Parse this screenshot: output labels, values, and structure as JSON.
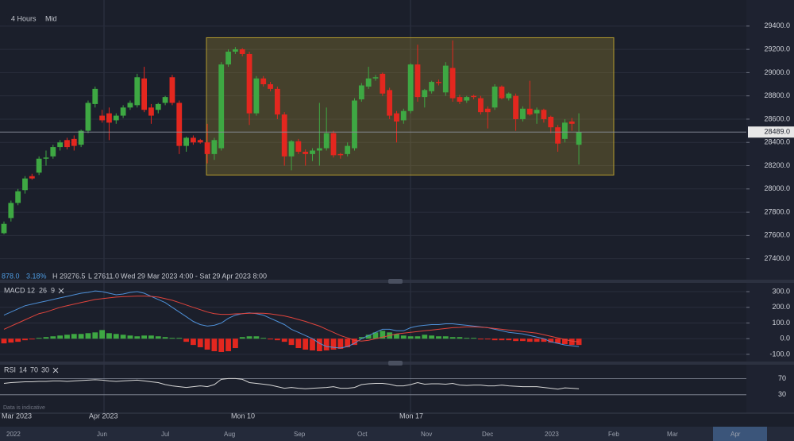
{
  "toolbar": {
    "interval": "4 Hours",
    "price_type": "Mid"
  },
  "info": {
    "change": "878.0",
    "change_pct": "3.18%",
    "high": "H 29276.5",
    "low": "L 27611.0",
    "range": "Wed 29 Mar 2023 4:00 - Sat 29 Apr 2023 8:00"
  },
  "time_axis": [
    "Mar 2023",
    "Apr 2023",
    "Mon 10",
    "Mon 17"
  ],
  "navigator": [
    "2022",
    "Jun",
    "Jul",
    "Aug",
    "Sep",
    "Oct",
    "Nov",
    "Dec",
    "2023",
    "Feb",
    "Mar",
    "Apr"
  ],
  "disclaimer": "Data is indicative",
  "chart_data": [
    {
      "type": "candlestick",
      "up_color": "#3ea843",
      "down_color": "#e3271f",
      "ylim": [
        27220,
        29590
      ],
      "yticks": [
        {
          "value": 29400,
          "label": "29400.0"
        },
        {
          "value": 29200,
          "label": "29200.0"
        },
        {
          "value": 29000,
          "label": "29000.0"
        },
        {
          "value": 28800,
          "label": "28800.0"
        },
        {
          "value": 28600,
          "label": "28600.0"
        },
        {
          "value": 28400,
          "label": "28400.0"
        },
        {
          "value": 28200,
          "label": "28200.0"
        },
        {
          "value": 28000,
          "label": "28000.0"
        },
        {
          "value": 27800,
          "label": "27800.0"
        },
        {
          "value": 27600,
          "label": "27600.0"
        },
        {
          "value": 27400,
          "label": "27400.0"
        }
      ],
      "last_price": {
        "value": 28489,
        "label": "28489.0"
      },
      "range_box": {
        "ylim": [
          28120,
          29300
        ],
        "color": "#b39b2e"
      },
      "open": [
        27620,
        27750,
        27880,
        27990,
        28110,
        28140,
        28260,
        28280,
        28360,
        28420,
        28430,
        28380,
        28500,
        28730,
        28630,
        28650,
        28590,
        28630,
        28700,
        28720,
        28950,
        28700,
        28680,
        28740,
        28960,
        28740,
        28370,
        28440,
        28420,
        28400,
        28300,
        28350,
        29070,
        29180,
        29200,
        29160,
        28650,
        28950,
        28900,
        28860,
        28640,
        28280,
        28410,
        28320,
        28300,
        28330,
        28350,
        28480,
        28300,
        28300,
        28350,
        28770,
        28880,
        28950,
        28990,
        28850,
        28650,
        28590,
        28670,
        29070,
        28790,
        28840,
        28920,
        28830,
        29040,
        28790,
        28760,
        28800,
        28780,
        28690,
        28700,
        28880,
        28780,
        28800,
        28600,
        28690,
        28650,
        28680,
        28620,
        28530,
        28430,
        28580,
        28380
      ],
      "high": [
        27720,
        27900,
        28000,
        28110,
        28130,
        28280,
        28330,
        28380,
        28420,
        28440,
        28460,
        28510,
        28760,
        28880,
        28680,
        28700,
        28650,
        28720,
        28760,
        28990,
        29050,
        28730,
        28740,
        28800,
        28980,
        28760,
        28450,
        28460,
        28430,
        28560,
        28440,
        29090,
        29200,
        29220,
        29210,
        29180,
        28970,
        28970,
        28920,
        28880,
        28660,
        28420,
        28430,
        28340,
        28350,
        28740,
        28700,
        28500,
        28310,
        28400,
        28780,
        28910,
        29050,
        28980,
        29000,
        28870,
        28670,
        28690,
        29080,
        29240,
        28860,
        28930,
        28940,
        29090,
        29276.5,
        28810,
        28800,
        28810,
        28800,
        28710,
        28900,
        28890,
        28830,
        28820,
        28710,
        28930,
        28700,
        28690,
        28630,
        28550,
        28600,
        28610,
        28650
      ],
      "low": [
        27611,
        27720,
        27860,
        27960,
        28080,
        28120,
        28200,
        28260,
        28330,
        28340,
        28330,
        28360,
        28480,
        28700,
        28570,
        28420,
        28560,
        28610,
        28680,
        28700,
        28660,
        28560,
        28650,
        28720,
        28720,
        28300,
        28320,
        28380,
        28390,
        28220,
        28250,
        28330,
        29050,
        29160,
        29140,
        28550,
        28630,
        28880,
        28840,
        28600,
        28200,
        28160,
        28300,
        28200,
        28240,
        28200,
        28330,
        28270,
        28260,
        28280,
        28330,
        28750,
        28860,
        28930,
        28800,
        28600,
        28400,
        28560,
        28650,
        28750,
        28700,
        28820,
        28890,
        28800,
        28750,
        28730,
        28740,
        28770,
        28640,
        28520,
        28680,
        28770,
        28760,
        28500,
        28580,
        28630,
        28560,
        28570,
        28480,
        28320,
        28400,
        28500,
        28210
      ],
      "close": [
        27700,
        27880,
        27980,
        28090,
        28090,
        28260,
        28270,
        28360,
        28400,
        28360,
        28370,
        28500,
        28740,
        28860,
        28590,
        28570,
        28630,
        28700,
        28740,
        28960,
        28680,
        28630,
        28730,
        28790,
        28740,
        28370,
        28440,
        28400,
        28400,
        28300,
        28420,
        29070,
        29180,
        29200,
        29160,
        28650,
        28950,
        28900,
        28860,
        28640,
        28280,
        28410,
        28320,
        28300,
        28330,
        28350,
        28480,
        28290,
        28290,
        28370,
        28760,
        28890,
        28950,
        28960,
        28820,
        28630,
        28580,
        28670,
        29070,
        28790,
        28850,
        28920,
        28910,
        29060,
        28780,
        28750,
        28790,
        28790,
        28660,
        28660,
        28880,
        28780,
        28820,
        28600,
        28690,
        28640,
        28680,
        28600,
        28530,
        28390,
        28570,
        28560,
        28489
      ]
    },
    {
      "type": "macd",
      "label": "MACD",
      "params": [
        12,
        26,
        9
      ],
      "ylim": [
        -146,
        356
      ],
      "yticks": [
        {
          "value": 300,
          "label": "300.0"
        },
        {
          "value": 200,
          "label": "200.0"
        },
        {
          "value": 100,
          "label": "100.0"
        },
        {
          "value": 0,
          "label": "0.0"
        },
        {
          "value": -100,
          "label": "-100.0"
        }
      ],
      "histogram": {
        "up_color": "#3ea843",
        "down_color": "#e3271f",
        "values": [
          -30,
          -25,
          -20,
          -10,
          -5,
          5,
          10,
          15,
          20,
          25,
          30,
          30,
          35,
          40,
          55,
          35,
          30,
          25,
          20,
          15,
          20,
          20,
          15,
          10,
          5,
          5,
          -20,
          -40,
          -55,
          -70,
          -80,
          -85,
          -80,
          -60,
          10,
          15,
          15,
          5,
          -5,
          -10,
          -20,
          -40,
          -60,
          -70,
          -75,
          -80,
          -75,
          -70,
          -65,
          -55,
          -40,
          10,
          25,
          40,
          50,
          40,
          30,
          20,
          15,
          15,
          25,
          20,
          15,
          15,
          10,
          10,
          5,
          5,
          -5,
          -5,
          -10,
          -10,
          -10,
          -15,
          -15,
          -20,
          -20,
          -20,
          -25,
          -30,
          -35,
          -40,
          -40
        ]
      },
      "macd": {
        "color": "#4e8fd6",
        "values": [
          150,
          170,
          190,
          210,
          220,
          230,
          240,
          250,
          260,
          270,
          280,
          290,
          295,
          305,
          300,
          290,
          280,
          285,
          295,
          300,
          290,
          270,
          250,
          230,
          200,
          170,
          140,
          110,
          90,
          80,
          85,
          100,
          130,
          150,
          160,
          165,
          160,
          150,
          130,
          110,
          90,
          60,
          40,
          20,
          0,
          -30,
          -50,
          -55,
          -60,
          -50,
          -30,
          0,
          20,
          40,
          60,
          60,
          50,
          50,
          70,
          80,
          85,
          90,
          90,
          95,
          95,
          90,
          85,
          80,
          75,
          70,
          60,
          50,
          40,
          35,
          30,
          20,
          10,
          0,
          -20,
          -30,
          -40,
          -45,
          -50
        ]
      },
      "signal": {
        "color": "#e0443c",
        "values": [
          60,
          80,
          100,
          120,
          140,
          160,
          170,
          185,
          200,
          210,
          220,
          230,
          240,
          250,
          255,
          260,
          265,
          268,
          270,
          272,
          272,
          270,
          265,
          255,
          245,
          230,
          215,
          200,
          185,
          170,
          160,
          155,
          155,
          158,
          160,
          162,
          163,
          162,
          158,
          152,
          145,
          135,
          122,
          110,
          95,
          80,
          60,
          40,
          20,
          5,
          -10,
          -15,
          -10,
          0,
          10,
          20,
          30,
          35,
          40,
          45,
          50,
          55,
          60,
          65,
          70,
          72,
          75,
          75,
          73,
          70,
          65,
          60,
          55,
          50,
          45,
          40,
          35,
          25,
          15,
          5,
          -5,
          -15,
          -20
        ]
      }
    },
    {
      "type": "line",
      "label": "RSI",
      "params": [
        14,
        70,
        30
      ],
      "color": "#d6d6d6",
      "ylim": [
        14,
        104
      ],
      "yticks": [
        70,
        30
      ],
      "values": [
        58,
        60,
        61,
        62,
        62,
        63,
        63,
        64,
        64,
        63,
        64,
        65,
        66,
        67,
        66,
        64,
        63,
        64,
        65,
        66,
        64,
        62,
        60,
        55,
        52,
        50,
        48,
        50,
        52,
        50,
        55,
        68,
        70,
        70,
        68,
        60,
        58,
        56,
        54,
        50,
        46,
        48,
        46,
        45,
        46,
        47,
        48,
        50,
        46,
        46,
        48,
        55,
        57,
        58,
        58,
        56,
        52,
        52,
        55,
        60,
        56,
        57,
        57,
        56,
        58,
        54,
        53,
        54,
        54,
        52,
        52,
        54,
        52,
        51,
        50,
        50,
        50,
        48,
        46,
        44,
        47,
        46,
        45
      ]
    }
  ]
}
